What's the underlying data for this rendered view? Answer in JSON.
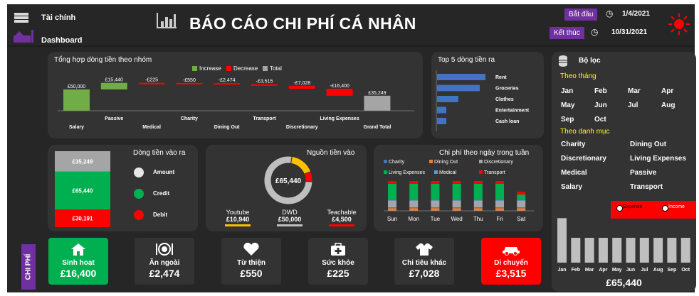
{
  "sidebar": {
    "app_label": "Tài chính",
    "nav_label": "Dashboard",
    "vertical_tab": "CHI PHÍ"
  },
  "header": {
    "title": "BÁO CÁO CHI PHÍ CÁ NHÂN",
    "start_label": "Bắt đầu",
    "start_date": "1/4/2021",
    "end_label": "Kết thúc",
    "end_date": "10/31/2021"
  },
  "group_panel": {
    "title": "Tổng hợp dòng tiền theo nhóm",
    "legend": [
      "Increase",
      "Decrease",
      "Total"
    ],
    "colors": {
      "increase": "#70ad47",
      "decrease": "#ff0000",
      "total": "#a5a5a5"
    }
  },
  "chart_data": [
    {
      "type": "bar",
      "subtype": "waterfall",
      "title": "Tổng hợp dòng tiền theo nhóm",
      "categories": [
        "Salary",
        "Passive",
        "Medical",
        "Charity",
        "Dining Out",
        "Transport",
        "Discretionary",
        "Living Expenses",
        "Grand Total"
      ],
      "values": [
        50000,
        15440,
        -225,
        -550,
        -2474,
        -3515,
        -7028,
        -16400,
        35249
      ],
      "labels": [
        "£50,000",
        "£15,440",
        "-£225",
        "-£550",
        "-£2,474",
        "-£3,515",
        "-£7,028",
        "-£16,400",
        "£35,249"
      ],
      "kinds": [
        "increase",
        "increase",
        "decrease",
        "decrease",
        "decrease",
        "decrease",
        "decrease",
        "decrease",
        "total"
      ]
    },
    {
      "type": "bar",
      "orientation": "horizontal",
      "title": "Top 5 dòng tiền ra",
      "categories": [
        "Rent",
        "Groceries",
        "Clothes",
        "Entertainment",
        "Cash loan"
      ],
      "values": [
        68,
        60,
        30,
        13,
        13
      ],
      "color": "#4472c4"
    },
    {
      "type": "bar",
      "subtype": "stacked",
      "title": "Dòng tiền vào ra",
      "categories": [
        "Amount",
        "Credit",
        "Debit"
      ],
      "values": [
        35249,
        65440,
        30191
      ],
      "labels": [
        "£35,249",
        "£65,440",
        "£30,191"
      ],
      "colors": [
        "#a5a5a5",
        "#00b050",
        "#ff0000"
      ]
    },
    {
      "type": "pie",
      "subtype": "donut",
      "title": "Nguồn tiền vào",
      "center_label": "£65,440",
      "categories": [
        "Youtube",
        "DWD",
        "Teachable"
      ],
      "values": [
        10940,
        50000,
        4500
      ],
      "labels": [
        "£10,940",
        "£50,000",
        "£4,500"
      ],
      "colors": [
        "#ffc000",
        "#bfbfbf",
        "#ff0000"
      ]
    },
    {
      "type": "bar",
      "subtype": "stacked",
      "title": "Chi phí theo ngày trong tuần",
      "legend": [
        "Charity",
        "Dining Out",
        "Discretionary",
        "Living Expenses",
        "Medical",
        "Transport"
      ],
      "colors": [
        "#4472c4",
        "#ed7d31",
        "#a5a5a5",
        "#00b050",
        "#5b9bd5",
        "#ff0000"
      ],
      "categories": [
        "Sun",
        "Mon",
        "Tue",
        "Wed",
        "Thu",
        "Fri",
        "Sat"
      ],
      "series": [
        {
          "name": "Charity",
          "values": [
            0.5,
            0.5,
            0.5,
            0.5,
            0.5,
            0.5,
            0.5
          ]
        },
        {
          "name": "Dining Out",
          "values": [
            2,
            2,
            2,
            2,
            2,
            2,
            2
          ]
        },
        {
          "name": "Discretionary",
          "values": [
            5,
            5,
            5,
            5,
            5,
            5,
            5
          ]
        },
        {
          "name": "Living Expenses",
          "values": [
            12,
            12,
            12,
            12,
            12,
            12,
            4
          ]
        },
        {
          "name": "Medical",
          "values": [
            0.5,
            0.5,
            0.5,
            0.5,
            0.5,
            0.5,
            0.5
          ]
        },
        {
          "name": "Transport",
          "values": [
            2,
            2,
            2,
            2,
            2,
            2,
            2
          ]
        }
      ]
    },
    {
      "type": "bar",
      "title": "",
      "categories": [
        "Jan",
        "Feb",
        "Mar",
        "Apr",
        "May",
        "Jun",
        "Jul",
        "Aug",
        "Sep",
        "Oct"
      ],
      "values": [
        9.5,
        5.3,
        5.3,
        5.3,
        5.3,
        5.3,
        5.3,
        5.3,
        5.3,
        5.3
      ],
      "ylim": [
        0,
        10
      ],
      "color": "#bfbfbf"
    }
  ],
  "flow_panel": {
    "title": "Dòng tiền vào ra",
    "legend": [
      "Amount",
      "Credit",
      "Debit"
    ]
  },
  "income_panel": {
    "title": "Nguồn tiền vào"
  },
  "weekday_panel": {
    "title": "Chi phí theo ngày trong tuần"
  },
  "top5_panel": {
    "title": "Top 5 dòng tiền ra"
  },
  "filter": {
    "title": "Bộ lọc",
    "month_heading": "Theo tháng",
    "months": [
      "Jan",
      "Feb",
      "Mar",
      "Apr",
      "May",
      "Jun",
      "Jul",
      "Aug",
      "Sep",
      "Oct"
    ],
    "category_heading": "Theo danh mục",
    "categories": [
      "Charity",
      "Dining Out",
      "Discretionary",
      "Living Expenses",
      "Medical",
      "Passive",
      "Salary",
      "Transport"
    ],
    "radio": [
      "Expense",
      "Income"
    ],
    "total": "£65,440",
    "accent": "#ffff00"
  },
  "kpis": [
    {
      "label": "Sinh hoạt",
      "value": "£16,400",
      "icon": "house-icon"
    },
    {
      "label": "Ăn ngoài",
      "value": "£2,474",
      "icon": "dining-icon"
    },
    {
      "label": "Từ thiện",
      "value": "£550",
      "icon": "heart-icon"
    },
    {
      "label": "Sức khỏe",
      "value": "£225",
      "icon": "medical-kit-icon"
    },
    {
      "label": "Chi tiêu khác",
      "value": "£7,028",
      "icon": "shirt-icon"
    },
    {
      "label": "Di chuyển",
      "value": "£3,515",
      "icon": "car-icon"
    }
  ]
}
